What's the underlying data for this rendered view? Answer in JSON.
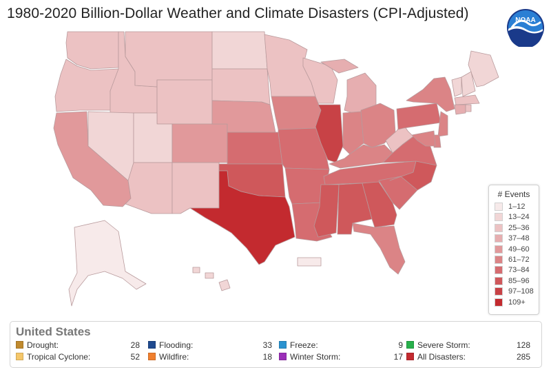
{
  "title": "1980-2020 Billion-Dollar Weather and Climate Disasters (CPI-Adjusted)",
  "logo": {
    "icon": "noaa-logo",
    "text": "NOAA"
  },
  "legend": {
    "title": "# Events",
    "bins": [
      {
        "label": "1–12",
        "color": "#f7eaea"
      },
      {
        "label": "13–24",
        "color": "#f1d6d6"
      },
      {
        "label": "25–36",
        "color": "#ecc2c3"
      },
      {
        "label": "37–48",
        "color": "#e6aeb0"
      },
      {
        "label": "49–60",
        "color": "#e1999b"
      },
      {
        "label": "61–72",
        "color": "#db8486"
      },
      {
        "label": "73–84",
        "color": "#d56c70"
      },
      {
        "label": "85–96",
        "color": "#cf585b"
      },
      {
        "label": "97–108",
        "color": "#c84246"
      },
      {
        "label": "109+",
        "color": "#c32a2f"
      }
    ]
  },
  "summary": {
    "region": "United States",
    "stats": [
      {
        "label": "Drought:",
        "value": "28",
        "color": "#c08a2e"
      },
      {
        "label": "Flooding:",
        "value": "33",
        "color": "#1f4a8f"
      },
      {
        "label": "Freeze:",
        "value": "9",
        "color": "#2a93d0"
      },
      {
        "label": "Severe Storm:",
        "value": "128",
        "color": "#27b04b"
      },
      {
        "label": "Tropical Cyclone:",
        "value": "52",
        "color": "#f5c76a"
      },
      {
        "label": "Wildfire:",
        "value": "18",
        "color": "#f07f2e"
      },
      {
        "label": "Winter Storm:",
        "value": "17",
        "color": "#9b2fb8"
      },
      {
        "label": "All Disasters:",
        "value": "285",
        "color": "#c32a2f"
      }
    ]
  },
  "states": [
    {
      "id": "WA",
      "bin": 2
    },
    {
      "id": "OR",
      "bin": 2
    },
    {
      "id": "CA",
      "bin": 4
    },
    {
      "id": "ID",
      "bin": 2
    },
    {
      "id": "NV",
      "bin": 1
    },
    {
      "id": "MT",
      "bin": 2
    },
    {
      "id": "WY",
      "bin": 2
    },
    {
      "id": "UT",
      "bin": 1
    },
    {
      "id": "AZ",
      "bin": 2
    },
    {
      "id": "CO",
      "bin": 4
    },
    {
      "id": "NM",
      "bin": 2
    },
    {
      "id": "ND",
      "bin": 1
    },
    {
      "id": "SD",
      "bin": 2
    },
    {
      "id": "NE",
      "bin": 4
    },
    {
      "id": "KS",
      "bin": 6
    },
    {
      "id": "OK",
      "bin": 7
    },
    {
      "id": "TX",
      "bin": 9
    },
    {
      "id": "MN",
      "bin": 2
    },
    {
      "id": "IA",
      "bin": 5
    },
    {
      "id": "MO",
      "bin": 6
    },
    {
      "id": "AR",
      "bin": 6
    },
    {
      "id": "LA",
      "bin": 6
    },
    {
      "id": "WI",
      "bin": 2
    },
    {
      "id": "IL",
      "bin": 8
    },
    {
      "id": "MI",
      "bin": 3
    },
    {
      "id": "IN",
      "bin": 5
    },
    {
      "id": "OH",
      "bin": 5
    },
    {
      "id": "KY",
      "bin": 5
    },
    {
      "id": "TN",
      "bin": 6
    },
    {
      "id": "MS",
      "bin": 7
    },
    {
      "id": "AL",
      "bin": 7
    },
    {
      "id": "GA",
      "bin": 7
    },
    {
      "id": "FL",
      "bin": 5
    },
    {
      "id": "SC",
      "bin": 6
    },
    {
      "id": "NC",
      "bin": 7
    },
    {
      "id": "VA",
      "bin": 6
    },
    {
      "id": "WV",
      "bin": 2
    },
    {
      "id": "PA",
      "bin": 6
    },
    {
      "id": "NY",
      "bin": 5
    },
    {
      "id": "ME",
      "bin": 1
    },
    {
      "id": "VT",
      "bin": 1
    },
    {
      "id": "NH",
      "bin": 1
    },
    {
      "id": "MA",
      "bin": 2
    },
    {
      "id": "CT",
      "bin": 3
    },
    {
      "id": "RI",
      "bin": 2
    },
    {
      "id": "NJ",
      "bin": 5
    },
    {
      "id": "DE",
      "bin": 5
    },
    {
      "id": "MD",
      "bin": 5
    },
    {
      "id": "AK",
      "bin": 0
    },
    {
      "id": "HI",
      "bin": 1
    },
    {
      "id": "PR",
      "bin": 0
    }
  ]
}
